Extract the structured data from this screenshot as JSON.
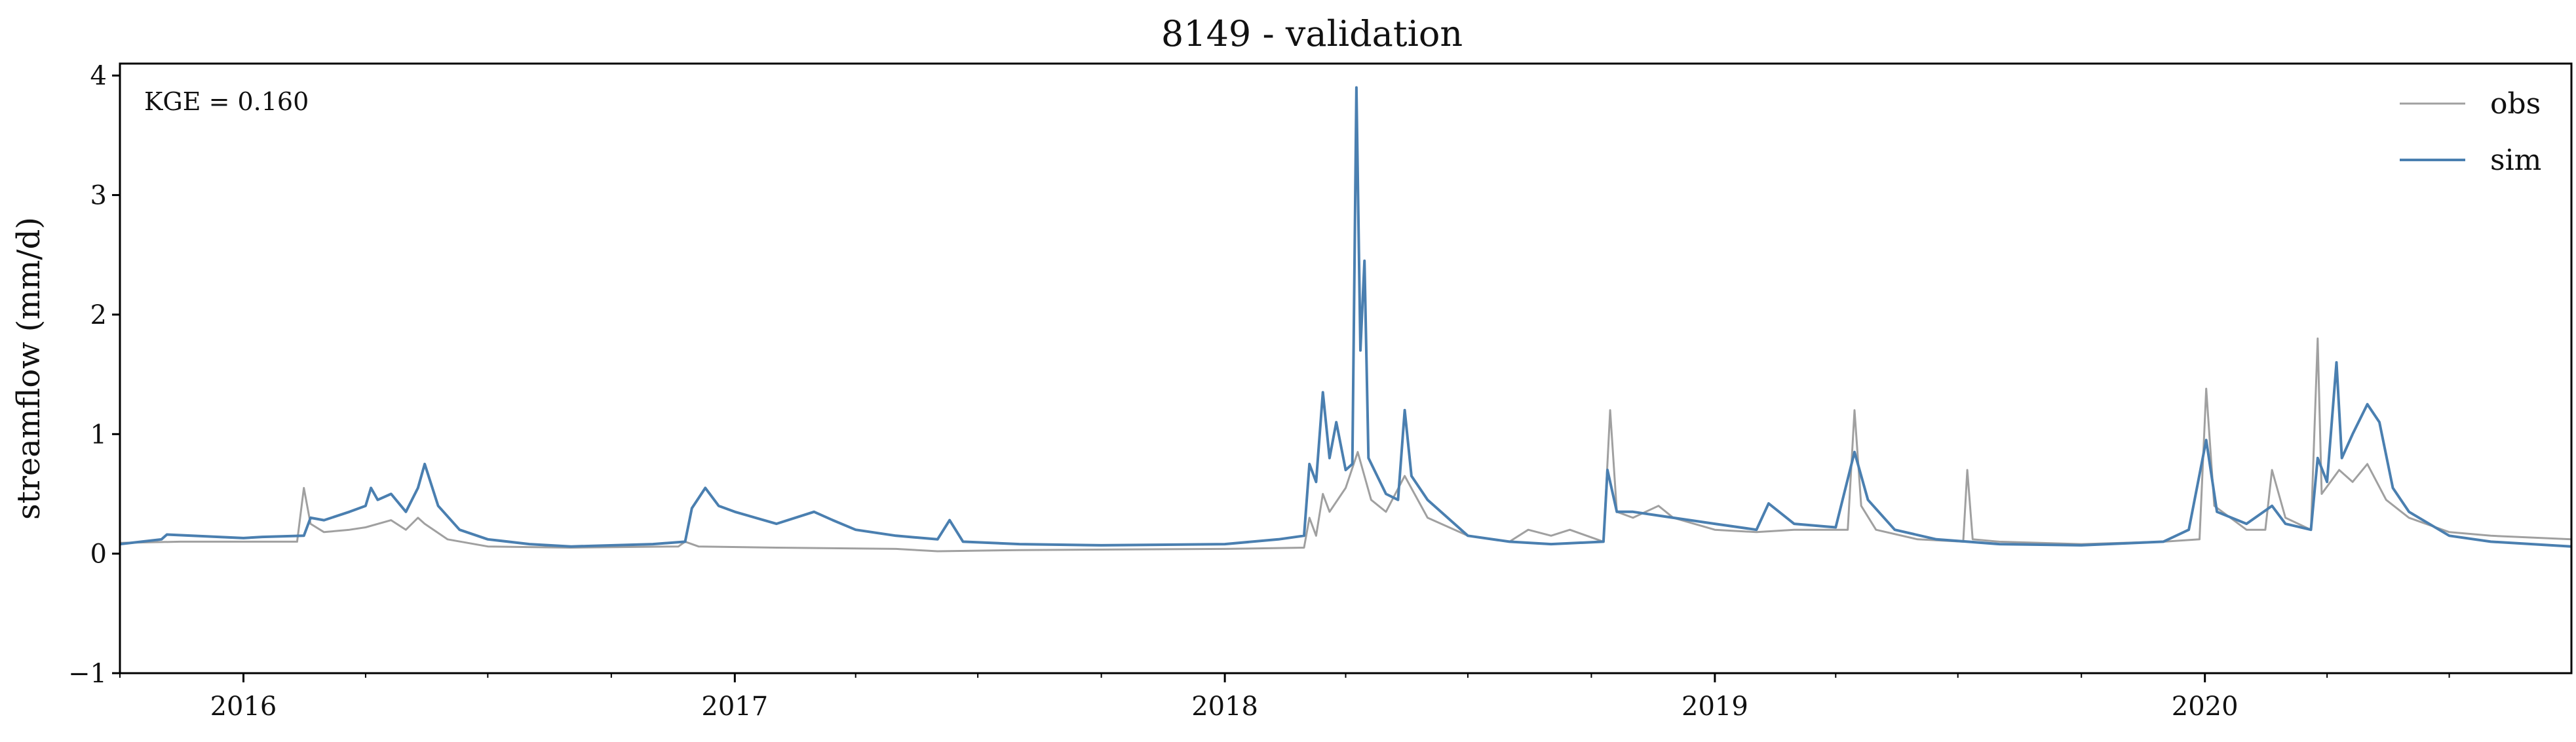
{
  "chart_data": {
    "type": "line",
    "title": "8149 - validation",
    "xlabel": "",
    "ylabel": "streamflow (mm/d)",
    "xlim": [
      "2015-10-01",
      "2020-09-30"
    ],
    "ylim": [
      -1,
      4.1
    ],
    "yticks": [
      -1,
      0,
      1,
      2,
      3,
      4
    ],
    "ytick_labels": [
      "−1",
      "0",
      "1",
      "2",
      "3",
      "4"
    ],
    "xticks": [
      "2016-01-01",
      "2017-01-01",
      "2018-01-01",
      "2019-01-01",
      "2020-01-01"
    ],
    "xtick_labels": [
      "2016",
      "2017",
      "2018",
      "2019",
      "2020"
    ],
    "grid": false,
    "legend_position": "top-right",
    "annotation": "KGE = 0.160",
    "series": [
      {
        "name": "obs",
        "color": "#a0a0a0",
        "points": [
          [
            "2015-10-01",
            0.09
          ],
          [
            "2015-11-15",
            0.1
          ],
          [
            "2016-01-01",
            0.1
          ],
          [
            "2016-02-10",
            0.1
          ],
          [
            "2016-02-15",
            0.55
          ],
          [
            "2016-02-20",
            0.25
          ],
          [
            "2016-03-01",
            0.18
          ],
          [
            "2016-03-20",
            0.2
          ],
          [
            "2016-04-01",
            0.22
          ],
          [
            "2016-04-20",
            0.28
          ],
          [
            "2016-05-01",
            0.2
          ],
          [
            "2016-05-10",
            0.3
          ],
          [
            "2016-05-15",
            0.25
          ],
          [
            "2016-06-01",
            0.12
          ],
          [
            "2016-07-01",
            0.06
          ],
          [
            "2016-09-01",
            0.05
          ],
          [
            "2016-11-20",
            0.06
          ],
          [
            "2016-11-25",
            0.1
          ],
          [
            "2016-12-05",
            0.06
          ],
          [
            "2017-02-01",
            0.05
          ],
          [
            "2017-05-01",
            0.04
          ],
          [
            "2017-06-01",
            0.02
          ],
          [
            "2017-08-01",
            0.03
          ],
          [
            "2018-01-01",
            0.04
          ],
          [
            "2018-03-01",
            0.05
          ],
          [
            "2018-03-05",
            0.3
          ],
          [
            "2018-03-10",
            0.15
          ],
          [
            "2018-03-15",
            0.5
          ],
          [
            "2018-03-20",
            0.35
          ],
          [
            "2018-04-01",
            0.55
          ],
          [
            "2018-04-10",
            0.85
          ],
          [
            "2018-04-20",
            0.45
          ],
          [
            "2018-05-01",
            0.35
          ],
          [
            "2018-05-15",
            0.65
          ],
          [
            "2018-06-01",
            0.3
          ],
          [
            "2018-07-01",
            0.15
          ],
          [
            "2018-08-01",
            0.1
          ],
          [
            "2018-08-15",
            0.2
          ],
          [
            "2018-09-01",
            0.15
          ],
          [
            "2018-09-15",
            0.2
          ],
          [
            "2018-10-10",
            0.1
          ],
          [
            "2018-10-15",
            1.2
          ],
          [
            "2018-10-20",
            0.35
          ],
          [
            "2018-11-01",
            0.3
          ],
          [
            "2018-11-20",
            0.4
          ],
          [
            "2018-12-01",
            0.3
          ],
          [
            "2019-01-01",
            0.2
          ],
          [
            "2019-02-01",
            0.18
          ],
          [
            "2019-03-01",
            0.2
          ],
          [
            "2019-04-10",
            0.2
          ],
          [
            "2019-04-15",
            1.2
          ],
          [
            "2019-04-20",
            0.4
          ],
          [
            "2019-05-01",
            0.2
          ],
          [
            "2019-06-01",
            0.12
          ],
          [
            "2019-07-05",
            0.1
          ],
          [
            "2019-07-08",
            0.7
          ],
          [
            "2019-07-12",
            0.12
          ],
          [
            "2019-08-01",
            0.1
          ],
          [
            "2019-10-01",
            0.08
          ],
          [
            "2019-12-01",
            0.1
          ],
          [
            "2019-12-28",
            0.12
          ],
          [
            "2020-01-02",
            1.38
          ],
          [
            "2020-01-08",
            0.4
          ],
          [
            "2020-02-01",
            0.2
          ],
          [
            "2020-02-15",
            0.2
          ],
          [
            "2020-02-20",
            0.7
          ],
          [
            "2020-03-01",
            0.3
          ],
          [
            "2020-03-20",
            0.2
          ],
          [
            "2020-03-25",
            1.8
          ],
          [
            "2020-03-28",
            0.5
          ],
          [
            "2020-04-10",
            0.7
          ],
          [
            "2020-04-20",
            0.6
          ],
          [
            "2020-05-01",
            0.75
          ],
          [
            "2020-05-15",
            0.45
          ],
          [
            "2020-06-01",
            0.3
          ],
          [
            "2020-07-01",
            0.18
          ],
          [
            "2020-08-01",
            0.15
          ],
          [
            "2020-09-30",
            0.12
          ]
        ]
      },
      {
        "name": "sim",
        "color": "#4a7fb0",
        "points": [
          [
            "2015-10-01",
            0.08
          ],
          [
            "2015-11-01",
            0.12
          ],
          [
            "2015-11-05",
            0.16
          ],
          [
            "2016-01-01",
            0.13
          ],
          [
            "2016-01-15",
            0.14
          ],
          [
            "2016-02-15",
            0.15
          ],
          [
            "2016-02-20",
            0.3
          ],
          [
            "2016-03-01",
            0.28
          ],
          [
            "2016-03-20",
            0.35
          ],
          [
            "2016-04-01",
            0.4
          ],
          [
            "2016-04-05",
            0.55
          ],
          [
            "2016-04-10",
            0.45
          ],
          [
            "2016-04-20",
            0.5
          ],
          [
            "2016-05-01",
            0.35
          ],
          [
            "2016-05-10",
            0.55
          ],
          [
            "2016-05-15",
            0.75
          ],
          [
            "2016-05-25",
            0.4
          ],
          [
            "2016-06-10",
            0.2
          ],
          [
            "2016-07-01",
            0.12
          ],
          [
            "2016-08-01",
            0.08
          ],
          [
            "2016-09-01",
            0.06
          ],
          [
            "2016-11-01",
            0.08
          ],
          [
            "2016-11-25",
            0.1
          ],
          [
            "2016-11-30",
            0.38
          ],
          [
            "2016-12-10",
            0.55
          ],
          [
            "2016-12-20",
            0.4
          ],
          [
            "2017-01-01",
            0.35
          ],
          [
            "2017-02-01",
            0.25
          ],
          [
            "2017-03-01",
            0.35
          ],
          [
            "2017-03-15",
            0.28
          ],
          [
            "2017-04-01",
            0.2
          ],
          [
            "2017-05-01",
            0.15
          ],
          [
            "2017-06-01",
            0.12
          ],
          [
            "2017-06-10",
            0.28
          ],
          [
            "2017-06-20",
            0.1
          ],
          [
            "2017-08-01",
            0.08
          ],
          [
            "2017-10-01",
            0.07
          ],
          [
            "2018-01-01",
            0.08
          ],
          [
            "2018-02-10",
            0.12
          ],
          [
            "2018-03-01",
            0.15
          ],
          [
            "2018-03-05",
            0.75
          ],
          [
            "2018-03-10",
            0.6
          ],
          [
            "2018-03-15",
            1.35
          ],
          [
            "2018-03-20",
            0.8
          ],
          [
            "2018-03-25",
            1.1
          ],
          [
            "2018-04-01",
            0.7
          ],
          [
            "2018-04-06",
            0.75
          ],
          [
            "2018-04-09",
            3.9
          ],
          [
            "2018-04-12",
            1.7
          ],
          [
            "2018-04-15",
            2.45
          ],
          [
            "2018-04-18",
            0.8
          ],
          [
            "2018-05-01",
            0.5
          ],
          [
            "2018-05-10",
            0.45
          ],
          [
            "2018-05-15",
            1.2
          ],
          [
            "2018-05-20",
            0.65
          ],
          [
            "2018-06-01",
            0.45
          ],
          [
            "2018-07-01",
            0.15
          ],
          [
            "2018-08-01",
            0.1
          ],
          [
            "2018-09-01",
            0.08
          ],
          [
            "2018-10-10",
            0.1
          ],
          [
            "2018-10-13",
            0.7
          ],
          [
            "2018-10-20",
            0.35
          ],
          [
            "2018-11-01",
            0.35
          ],
          [
            "2018-12-01",
            0.3
          ],
          [
            "2019-01-01",
            0.25
          ],
          [
            "2019-02-01",
            0.2
          ],
          [
            "2019-02-10",
            0.42
          ],
          [
            "2019-03-01",
            0.25
          ],
          [
            "2019-04-01",
            0.22
          ],
          [
            "2019-04-15",
            0.85
          ],
          [
            "2019-04-25",
            0.45
          ],
          [
            "2019-05-15",
            0.2
          ],
          [
            "2019-06-15",
            0.12
          ],
          [
            "2019-08-01",
            0.08
          ],
          [
            "2019-10-01",
            0.07
          ],
          [
            "2019-12-01",
            0.1
          ],
          [
            "2019-12-20",
            0.2
          ],
          [
            "2020-01-02",
            0.95
          ],
          [
            "2020-01-10",
            0.35
          ],
          [
            "2020-02-01",
            0.25
          ],
          [
            "2020-02-20",
            0.4
          ],
          [
            "2020-03-01",
            0.25
          ],
          [
            "2020-03-20",
            0.2
          ],
          [
            "2020-03-25",
            0.8
          ],
          [
            "2020-04-01",
            0.6
          ],
          [
            "2020-04-08",
            1.6
          ],
          [
            "2020-04-12",
            0.8
          ],
          [
            "2020-04-20",
            1.0
          ],
          [
            "2020-05-01",
            1.25
          ],
          [
            "2020-05-10",
            1.1
          ],
          [
            "2020-05-20",
            0.55
          ],
          [
            "2020-06-01",
            0.35
          ],
          [
            "2020-07-01",
            0.15
          ],
          [
            "2020-08-01",
            0.1
          ],
          [
            "2020-09-30",
            0.06
          ]
        ]
      }
    ]
  }
}
